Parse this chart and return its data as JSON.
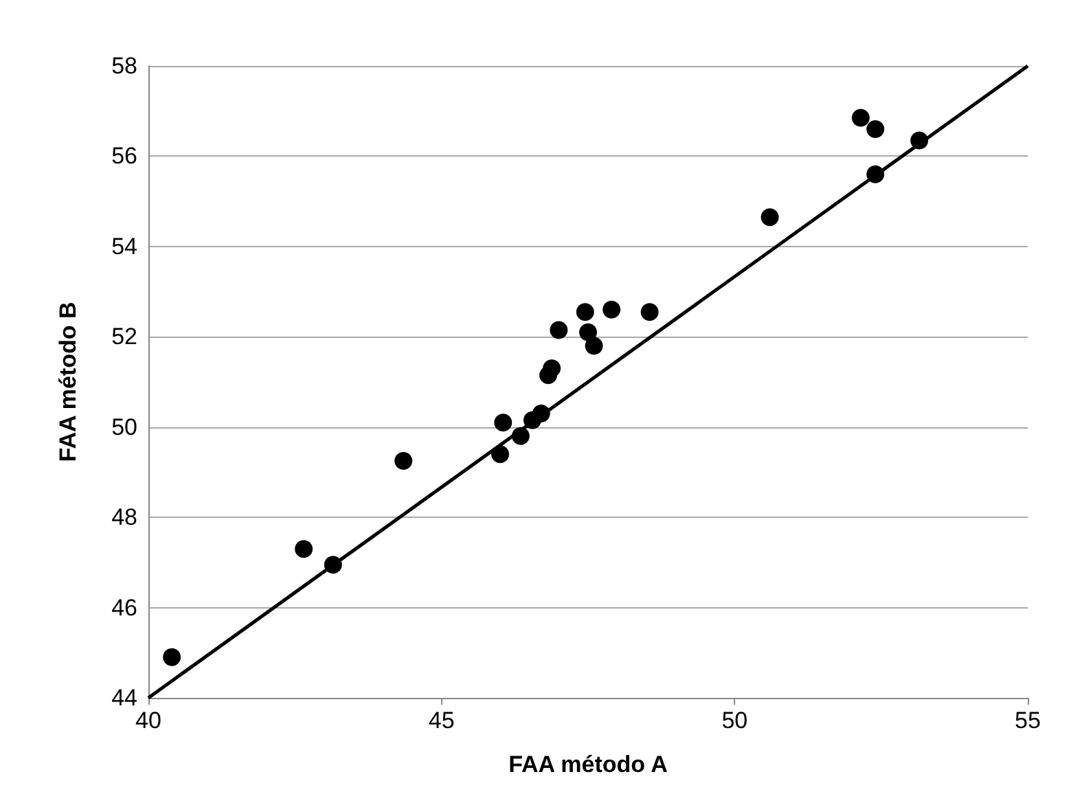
{
  "chart_data": {
    "type": "scatter",
    "xlabel": "FAA método A",
    "ylabel": "FAA método B",
    "x": [
      40.4,
      42.65,
      43.15,
      44.35,
      46.0,
      46.05,
      46.35,
      46.55,
      46.7,
      46.82,
      46.88,
      47.0,
      47.45,
      47.5,
      47.6,
      47.9,
      48.55,
      50.6,
      52.15,
      52.4,
      52.4,
      53.15
    ],
    "series": [
      {
        "color": "#000000",
        "marker": "circle",
        "values": [
          44.9,
          47.3,
          46.95,
          49.25,
          49.4,
          50.1,
          49.8,
          50.15,
          50.3,
          51.15,
          51.3,
          52.15,
          52.55,
          52.1,
          51.8,
          52.6,
          52.55,
          54.65,
          56.85,
          56.6,
          55.6,
          56.35
        ]
      },
      {
        "type": "line",
        "color": "#000000",
        "marker": "none",
        "x": [
          40,
          55
        ],
        "values": [
          44,
          58
        ]
      }
    ],
    "xlim": [
      40,
      55
    ],
    "xticks": [
      40,
      45,
      50,
      55
    ],
    "ylim": [
      44,
      58
    ],
    "yticks": [
      44,
      46,
      48,
      50,
      52,
      54,
      56,
      58
    ],
    "grid": "y",
    "line_style": "solid"
  }
}
